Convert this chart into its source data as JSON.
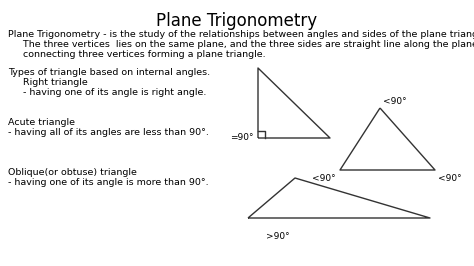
{
  "title": "Plane Trigonometry",
  "title_fontsize": 12,
  "bg_color": "#ffffff",
  "text_color": "#000000",
  "font_family": "DejaVu Sans",
  "body_line1": "Plane Trigonometry - is the study of the relationships between angles and sides of the plane triangle.",
  "body_line2": "     The three vertices  lies on the same plane, and the three sides are straight line along the plane",
  "body_line3": "     connecting three vertices forming a plane triangle.",
  "body_fontsize": 6.8,
  "section1_header": "Types of triangle based on internal angles.",
  "section1_sub1": "     Right triangle",
  "section1_sub1_desc": "     - having one of its angle is right angle.",
  "section1_sub2": "Acute triangle",
  "section1_sub2_desc": "- having all of its angles are less than 90°.",
  "section1_sub3": "Oblique(or obtuse) triangle",
  "section1_sub3_desc": "- having one of its angle is more than 90°.",
  "right_triangle_label": "=90°",
  "acute_label_top": "<90°",
  "acute_label_bl": "<90°",
  "acute_label_br": "<90°",
  "obtuse_label": ">90°",
  "line_color": "#333333",
  "line_width": 1.0
}
